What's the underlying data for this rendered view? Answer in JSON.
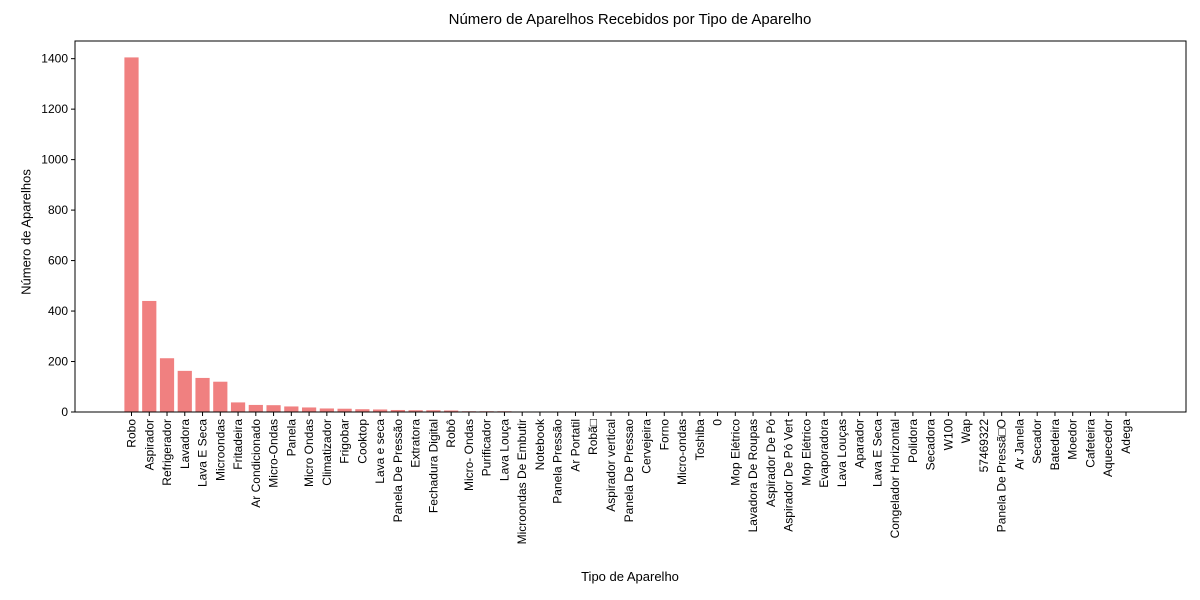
{
  "chart_data": {
    "type": "bar",
    "title": "Número de Aparelhos Recebidos por Tipo de Aparelho",
    "xlabel": "Tipo de Aparelho",
    "ylabel": "Número de Aparelhos",
    "ylim": [
      0,
      1470
    ],
    "yticks": [
      0,
      200,
      400,
      600,
      800,
      1000,
      1200,
      1400
    ],
    "bar_color": "#f08080",
    "grid": false,
    "categories": [
      "Robo",
      "Aspirador",
      "Refrigerador",
      "Lavadora",
      "Lava E Seca",
      "Microondas",
      "Fritadeira",
      "Ar Condicionado",
      "Micro-Ondas",
      "Panela",
      "Micro Ondas",
      "Climatizador",
      "Frigobar",
      "Cooktop",
      "Lava e seca",
      "Panela De Pressão",
      "Extratora",
      "Fechadura Digital",
      "Robô",
      "Micro- Ondas",
      "Purificador",
      "Lava Louça",
      "Microondas De Embutir",
      "Notebook",
      "Panela Pressão",
      "Ar Portatil",
      "Robã□",
      "Aspirador vertical",
      "Panela De Pressao",
      "Cervejeira",
      "Forno",
      "Micro-ondas",
      "Toshiba",
      "0",
      "Mop Elétrico",
      "Lavadora De Roupas",
      "Aspirador De Pó",
      "Aspirador De Pó Vert",
      "Mop  Elétrico",
      "Evaporadora",
      "Lava Louças",
      "Aparador",
      "Lava  E Seca",
      "Congelador Horizontal",
      "Polidora",
      "Secadora",
      "W100",
      "Wap",
      "57469322",
      "Panela De Pressã□O",
      "Ar Janela",
      "Secador",
      "Batedeira",
      "Moedor",
      "Cafeteira",
      "Aquecedor",
      "Adega"
    ],
    "values": [
      1405,
      440,
      213,
      163,
      135,
      120,
      38,
      28,
      27,
      22,
      18,
      14,
      13,
      11,
      10,
      8,
      7,
      7,
      6,
      3,
      3,
      3,
      2,
      2,
      2,
      2,
      2,
      2,
      2,
      1,
      1,
      1,
      1,
      1,
      1,
      1,
      1,
      1,
      1,
      1,
      1,
      1,
      1,
      1,
      1,
      1,
      1,
      1,
      1,
      1,
      1,
      1,
      1,
      1,
      1,
      1,
      1
    ]
  }
}
